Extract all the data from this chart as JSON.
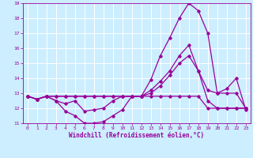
{
  "xlabel": "Windchill (Refroidissement éolien,°C)",
  "bg_color": "#cceeff",
  "line_color": "#990099",
  "grid_color": "#ffffff",
  "xlim": [
    -0.5,
    23.5
  ],
  "ylim": [
    11,
    19
  ],
  "yticks": [
    11,
    12,
    13,
    14,
    15,
    16,
    17,
    18,
    19
  ],
  "xticks": [
    0,
    1,
    2,
    3,
    4,
    5,
    6,
    7,
    8,
    9,
    10,
    11,
    12,
    13,
    14,
    15,
    16,
    17,
    18,
    19,
    20,
    21,
    22,
    23
  ],
  "series": [
    [
      12.8,
      12.6,
      12.8,
      12.5,
      11.8,
      11.5,
      11.0,
      11.0,
      11.1,
      11.5,
      11.9,
      12.8,
      12.8,
      13.9,
      15.5,
      16.7,
      18.0,
      19.0,
      18.5,
      17.0,
      13.0,
      13.3,
      14.0,
      11.9
    ],
    [
      12.8,
      12.6,
      12.8,
      12.5,
      12.3,
      12.5,
      11.8,
      11.9,
      12.0,
      12.5,
      12.8,
      12.8,
      12.8,
      13.2,
      13.8,
      14.5,
      15.5,
      16.2,
      14.5,
      12.5,
      12.0,
      12.0,
      12.0,
      12.0
    ],
    [
      12.8,
      12.6,
      12.8,
      12.8,
      12.8,
      12.8,
      12.8,
      12.8,
      12.8,
      12.8,
      12.8,
      12.8,
      12.8,
      13.0,
      13.5,
      14.2,
      15.0,
      15.5,
      14.5,
      13.2,
      13.0,
      13.0,
      13.0,
      12.0
    ],
    [
      12.8,
      12.6,
      12.8,
      12.8,
      12.8,
      12.8,
      12.8,
      12.8,
      12.8,
      12.8,
      12.8,
      12.8,
      12.8,
      12.8,
      12.8,
      12.8,
      12.8,
      12.8,
      12.8,
      12.0,
      12.0,
      12.0,
      12.0,
      12.0
    ]
  ]
}
